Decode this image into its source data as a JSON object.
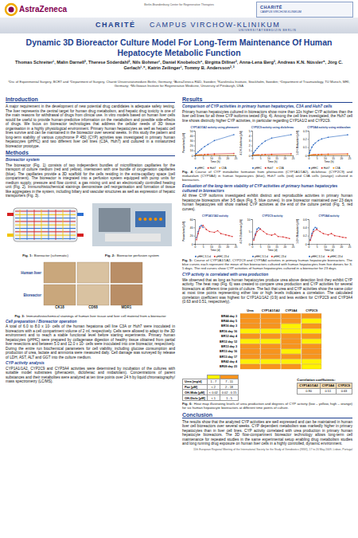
{
  "header": {
    "left_logo": "AstraZeneca",
    "center_logo": "Berlin-Brandenburg Center for Regenerative Therapies",
    "right_logo_1": "CHARITÉ",
    "right_logo_2": "CAMPUS VIRCHOW-KLINIKUM",
    "band_1": "CHARITÉ",
    "band_2": "CAMPUS VIRCHOW-KLINIKUM",
    "band_3": "UNIVERSITÄTSMEDIZIN BERLIN",
    "title": "Dynamic 3D Bioreactor Culture Model For Long-Term Maintenance Of Human Hepatocyte Metabolic Function",
    "authors": "Thomas Schreiter¹, Malin Darnell³, Therese Söderdahl², Nils Bohmer¹, Daniel Knobeloch⁴, Birgitta Dillner², Anna-Lena Berg², Andreas K.N. Nüssler⁵, Jörg C. Gerlach¹˒⁶, Katrin Zeilinger¹, Tommy B. Andersson²˒³",
    "affiliations": "¹Div. of Experimental Surgery, BCRT and ⁴Department of Surgery, Charité Universitätsmedizin Berlin, Germany; ²AstraZeneca R&D, Sweden; ³Karolinska Institute, Stockholm, Sweden; ⁵Department of Traumatology, TU Munich, MRI, Germany; ⁶McGowan Institute for Regenerative Medicine, University of Pittsburgh, USA"
  },
  "intro": {
    "heading": "Introduction",
    "text": "A major requirement in the development of new potential drug candidates is adequate safety testing. The liver represents the central target for human drug metabolism, and hepatic drug toxicity is one of the main reasons for withdrawal of drugs from clinical use. In vitro models based on human liver cells would be useful to provide human-predictive information on the metabolism and possible side-effects of drugs. We focus on bioreactor technologies that address the cellular needs of 3D tissue organisation in a highly physiological environment. Primary human hepatocytes as well as hepatic cell lines survive and can be maintained in the bioreactor over several weeks. In this study the pattern and long-term stability of various cytochrome P 450 (CYP) activities was investigated in primary human hepatocytes (pHHC) and two different liver cell lines (C3A, Huh7) and cultured in a miniaturized bioreactor prototype."
  },
  "methods": {
    "heading": "Methods",
    "bioreactor": {
      "subheading": "Bioreactor system",
      "text": "The bioreactor (Fig. 1) consists of two independent bundles of microfiltration capillaries for the transport of culture medium (red and yellow), interwoven with one bundle of oxygenation capillaries (blue). The capillaries provide a 3D scaffold for the cells residing in the extra-capillary space (cell compartment). The bioreactor is integrated into a perfusion system equipped with pump units for medium supply, pressure and flow control, a gas mixing unit and an electronically controlled heating unit (Fig. 2). Immunohistochemical stainings demonstrate cell reorganisation and formation of tissue like aggregates in the system, including biliary and vascular structures as well as expression of hepatic transporters (Fig. 3)."
    },
    "fig1": {
      "label": "Fig. 1:",
      "text": "Bioreactor (schematic)"
    },
    "fig2": {
      "label": "Fig. 2:",
      "text": "Bioreactor perfusion system"
    },
    "fig3": {
      "label": "Fig. 3:",
      "text": "Immunohistochemical stainings of human liver tissue and liver cell material from a bioreactor",
      "row_labels": [
        "Human liver",
        "Bioreactor"
      ],
      "col_labels": [
        "CK18",
        "CD68",
        "MDR1"
      ]
    },
    "cell_prep": {
      "subheading": "Cell preparation / Bioreactor operation",
      "text": "A total of 6.0 to 8.0 x 10⁷ cells of the human hepatoma cell line C3A or Huh7 were inoculated in bioreactors with a cell compartment volume of 2 ml, respectively. Cells were allowed to adapt to the 3D environment and to reach a stable functional level before starting experiments. Primary human hepatocytes (pHHC) were prepared by collagenase digestion of healthy tissue obtained from partial liver resections and between 5.0 and 12.0 x 10⁷ cells were inoculated into one bioreactor, respectively. During the entire run biochemical parameters for cell viability, including glucose consumption and production of urea, lactate and ammonia were measured daily. Cell damage was surveyed by release of LDH, AST, ALT and GGT into the culture medium."
    },
    "cyp_analysis": {
      "subheading": "CYP activity analysis",
      "text": "CYP1A1/1A2, CYP2C9 and CYP3A4 activities were determined by incubation of the cultures with suitable model substrates (phenacetin, diclofenac and midazolam). Concentrations of parent substances and their metabolites were analyzed at ten time points over 24 h by liquid chromatography/ mass spectrometry (LC/MS)."
    }
  },
  "results": {
    "heading": "Results",
    "comparison": {
      "subheading": "Comparison of CYP activities in primary human hepatocytes, C3A and Huh7 cells",
      "text": "Primary human hepatocytes cultured in bioreactors show more than 10x higher CYP activities than the liver cell lines for all three CYP isoforms tested (Fig. 4). Among the cell lines investigated, the Huh7 cell line shows distinctly higher CYP activities, in particular regarding CYP1A1/2 and CYP2C9."
    },
    "fig4": {
      "label": "Fig. 4:",
      "text": "Course of CYP metabolite formation from phenacetin (CYP1A1/1A2), diclofenac (CYP2C9) and midazolam (CYP3A4) in human hepatocytes (blue), Huh7 cells (red) and C3A cells (orange) cultured in bioreactors."
    },
    "evaluation": {
      "subheading": "Evaluation of the long-term stability of CYP activities of primary human hepatocytes cultured in bioreactors",
      "text": "All three CYP isoforms investigated exhibit distinct and reproducible activities in primary human hepatocyte bioreactors after 3-5 days (Fig. 5, blue curves). In one bioreactor maintained over 23 days human hepatocytes still show marked CYP activities at the end of the culture period (Fig. 5, red curves)."
    },
    "fig5": {
      "label": "Fig. 5:",
      "text": "Course of CYP1A1/1A2, CYP2C9 and CYP3A4 activities in primary human hepatocyte bioreactors. The blue curves each represent the mean of five bioreactors cultured with human hepatocytes from five donors for 3-5 days. The red curves show CYP activities of human hepatocytes cultured in a bioreactor for 23 days."
    },
    "correlation": {
      "subheading": "CYP activity is correlated with urea production",
      "text": "We observed that as long as human hepatocytes produce urea above detection limit they exhibit CYP activity. The heat map (Fig. 6) was created to compare urea production and CYP activities for several bioreactors at different time points of culture. The fact that urea and CYP activities show the same color at most time points representing either low or high levels indicates a correlation. The calculated correlation coefficient was highest for CYP1A1/1A2 (0.9) and less evident for CYP2C9 and CYP3A4 (0.63 and 0.51, respectively)."
    },
    "thresholds": {
      "rows": [
        [
          "Urea [mg/d]",
          "1 - 7",
          "7 - 11"
        ],
        [
          "Pae [µM]",
          "< 2",
          "2 - 18"
        ],
        [
          "OH-Mida [µM]",
          "< 0.02",
          "0.02 - 0.15"
        ],
        [
          "OH-Diclo [µM]",
          "< 1",
          "1 - 5"
        ]
      ]
    },
    "correlation_table": {
      "title": "Correlation coefficients:",
      "columns": [
        "CYP1A1/1A2",
        "CYP3A4",
        "CYP2C9"
      ],
      "values": [
        "0.90",
        "0.51",
        "0.63"
      ]
    },
    "fig6": {
      "label": "Fig. 6:",
      "text": "Heat map illustrating levels of urea production and degrees of CYP activity (low – yellow, high – orange) for six human hepatocyte bioreactors at different time points of culture."
    }
  },
  "conclusion": {
    "heading": "Conclusion",
    "text": "The results show that the analyzed CYP activities are well expressed and can be maintained in human liver cell bioreactors over several weeks. CYP dependent metabolism was markedly higher in primary hepatocytes than in liver cell lines. CYP activity correlated with urea production in primary human hepatocyte bioreactors. The 3D flow-compartment bioreactor technology allows long-term cell maintenance for repeated studies in the same experimental setup enabling drug metabolism studies and long running drug exposure on human liver cells in a highly controlled, dynamic environment."
  },
  "footer": "11th European Regional Meeting of the International Society for the Study of Xenobiotics (ISSX), 17 to 20 May 2009, Lisbon, Portugal",
  "chart_data": [
    {
      "type": "line",
      "title": "CYP1A1/1A2 activity using phenacetin",
      "x_label": "Time (h)",
      "y_label": "Paracetamol [µM]",
      "xlim": [
        0,
        25
      ],
      "xticks": [
        0,
        5,
        10,
        15,
        20,
        25
      ],
      "ylim": [
        0,
        50
      ],
      "yticks": [
        0,
        10,
        20,
        30,
        40,
        50
      ],
      "grid": false,
      "marker": "circle",
      "series": [
        {
          "name": "pHHC",
          "color": "#1f5fbf",
          "x": [
            0,
            0.5,
            1,
            2,
            3,
            4,
            6,
            8,
            12,
            24
          ],
          "values": [
            0,
            2,
            4,
            7,
            10,
            13,
            18,
            22,
            30,
            42
          ]
        },
        {
          "name": "Huh7",
          "color": "#d62020",
          "x": [
            0,
            0.5,
            1,
            2,
            3,
            4,
            6,
            8,
            12,
            24
          ],
          "values": [
            0,
            0.2,
            0.4,
            0.7,
            1,
            1.3,
            1.8,
            2.2,
            3,
            4
          ]
        },
        {
          "name": "C3A",
          "color": "#f39200",
          "x": [
            0,
            0.5,
            1,
            2,
            3,
            4,
            6,
            8,
            12,
            24
          ],
          "values": [
            0,
            0.05,
            0.1,
            0.15,
            0.2,
            0.25,
            0.3,
            0.35,
            0.4,
            0.5
          ]
        }
      ]
    },
    {
      "type": "line",
      "title": "CYP2C9 activity using diclofenac",
      "x_label": "Time (h)",
      "y_label": "4-OH-Diclofenac [µM]",
      "xlim": [
        0,
        25
      ],
      "xticks": [
        0,
        5,
        10,
        15,
        20,
        25
      ],
      "ylim": [
        0,
        5
      ],
      "yticks": [
        0,
        1,
        2,
        3,
        4,
        5
      ],
      "grid": false,
      "marker": "circle",
      "series": [
        {
          "name": "pHHC",
          "color": "#1f5fbf",
          "x": [
            0,
            0.5,
            1,
            2,
            3,
            4,
            6,
            8,
            12,
            24
          ],
          "values": [
            0,
            0.3,
            0.6,
            1,
            1.4,
            1.8,
            2.4,
            2.9,
            3.5,
            4.2
          ]
        },
        {
          "name": "Huh7",
          "color": "#d62020",
          "x": [
            0,
            0.5,
            1,
            2,
            3,
            4,
            6,
            8,
            12,
            24
          ],
          "values": [
            0,
            0.02,
            0.04,
            0.07,
            0.1,
            0.12,
            0.16,
            0.2,
            0.25,
            0.35
          ]
        },
        {
          "name": "C3A",
          "color": "#f39200",
          "x": [
            0,
            0.5,
            1,
            2,
            3,
            4,
            6,
            8,
            12,
            24
          ],
          "values": [
            0,
            0,
            0.01,
            0.01,
            0.02,
            0.02,
            0.03,
            0.03,
            0.04,
            0.05
          ]
        }
      ]
    },
    {
      "type": "line",
      "title": "CYP3A4 activity using midazolam",
      "x_label": "Time (h)",
      "y_label": "1-OH-Midazolam [µM]",
      "xlim": [
        0,
        25
      ],
      "xticks": [
        0,
        5,
        10,
        15,
        20,
        25
      ],
      "ylim": [
        0,
        0.3
      ],
      "yticks": [
        0,
        0.1,
        0.2,
        0.3
      ],
      "grid": false,
      "marker": "circle",
      "series": [
        {
          "name": "pHHC",
          "color": "#1f5fbf",
          "x": [
            0,
            0.5,
            1,
            2,
            3,
            4,
            6,
            8,
            12,
            24
          ],
          "values": [
            0,
            0.03,
            0.06,
            0.1,
            0.13,
            0.15,
            0.18,
            0.2,
            0.22,
            0.25
          ]
        },
        {
          "name": "Huh7",
          "color": "#d62020",
          "x": [
            0,
            0.5,
            1,
            2,
            3,
            4,
            6,
            8,
            12,
            24
          ],
          "values": [
            0,
            0.002,
            0.004,
            0.006,
            0.008,
            0.01,
            0.012,
            0.014,
            0.016,
            0.02
          ]
        },
        {
          "name": "C3A",
          "color": "#f39200",
          "x": [
            0,
            0.5,
            1,
            2,
            3,
            4,
            6,
            8,
            12,
            24
          ],
          "values": [
            0,
            0.001,
            0.002,
            0.003,
            0.004,
            0.005,
            0.006,
            0.007,
            0.008,
            0.01
          ]
        }
      ]
    },
    {
      "type": "line",
      "title": "CYP1A1/1A2 activity",
      "x_label": "Time (d)",
      "y_label": "Paracetamol [µM]",
      "xlim": [
        0,
        25
      ],
      "xticks": [
        0,
        5,
        10,
        15,
        20,
        25
      ],
      "ylim": [
        0,
        60
      ],
      "yticks": [
        0,
        20,
        40,
        60
      ],
      "grid": false,
      "marker": "circle",
      "series": [
        {
          "name": "pHHC 3-5 d",
          "color": "#1f5fbf",
          "x": [
            1,
            2,
            3,
            4,
            5
          ],
          "values": [
            15,
            30,
            42,
            45,
            40
          ]
        },
        {
          "name": "pHHC 23 d",
          "color": "#d62020",
          "x": [
            1,
            2,
            3,
            5,
            7,
            9,
            12,
            14,
            16,
            19,
            21,
            23
          ],
          "values": [
            10,
            25,
            38,
            45,
            35,
            30,
            28,
            32,
            25,
            22,
            20,
            18
          ]
        }
      ]
    },
    {
      "type": "line",
      "title": "CYP2C9 activity",
      "x_label": "Time (d)",
      "y_label": "4-OH-Diclofenac [µM]",
      "xlim": [
        0,
        25
      ],
      "xticks": [
        0,
        5,
        10,
        15,
        20,
        25
      ],
      "ylim": [
        0,
        10
      ],
      "yticks": [
        0,
        5,
        10
      ],
      "grid": false,
      "marker": "circle",
      "series": [
        {
          "name": "pHHC 3-5 d",
          "color": "#1f5fbf",
          "x": [
            1,
            2,
            3,
            4,
            5
          ],
          "values": [
            2,
            4,
            6,
            6.5,
            6
          ]
        },
        {
          "name": "pHHC 23 d",
          "color": "#d62020",
          "x": [
            1,
            2,
            3,
            5,
            7,
            9,
            12,
            14,
            16,
            19,
            21,
            23
          ],
          "values": [
            1.5,
            3.5,
            5,
            6,
            5,
            4,
            3.5,
            4,
            3,
            2.8,
            2.5,
            2.2
          ]
        }
      ]
    },
    {
      "type": "line",
      "title": "CYP3A4 activity",
      "x_label": "Time (d)",
      "y_label": "1-OH-Midazolam [µM]",
      "xlim": [
        0,
        25
      ],
      "xticks": [
        0,
        5,
        10,
        15,
        20,
        25
      ],
      "ylim": [
        0,
        0.6
      ],
      "yticks": [
        0,
        0.2,
        0.4,
        0.6
      ],
      "grid": false,
      "marker": "circle",
      "series": [
        {
          "name": "pHHC 3-5 d",
          "color": "#1f5fbf",
          "x": [
            1,
            2,
            3,
            4,
            5
          ],
          "values": [
            0.1,
            0.25,
            0.35,
            0.4,
            0.38
          ]
        },
        {
          "name": "pHHC 23 d",
          "color": "#d62020",
          "x": [
            1,
            2,
            3,
            5,
            7,
            9,
            12,
            14,
            16,
            19,
            21,
            23
          ],
          "values": [
            0.08,
            0.2,
            0.3,
            0.35,
            0.3,
            0.25,
            0.22,
            0.25,
            0.2,
            0.18,
            0.16,
            0.15
          ]
        }
      ]
    },
    {
      "type": "heatmap",
      "columns": [
        "Urea",
        "CYP1A1/1A2",
        "CYP3A4",
        "CYP2C9"
      ],
      "rows": [
        "BR44 day 3",
        "BR44 day 5",
        "BR16 day 3",
        "BR16 day 16",
        "BR12 day 4",
        "BR12 day 12",
        "BR13 day 3",
        "BR13 day 16",
        "BR13 day 17",
        "BR42 day 4",
        "BR09 day 23"
      ],
      "cells": [
        [
          1,
          1,
          1,
          1
        ],
        [
          1,
          1,
          1,
          0
        ],
        [
          1,
          1,
          0,
          1
        ],
        [
          0,
          0,
          0,
          0
        ],
        [
          1,
          1,
          1,
          1
        ],
        [
          0,
          0,
          1,
          0
        ],
        [
          1,
          1,
          1,
          1
        ],
        [
          1,
          1,
          0,
          1
        ],
        [
          1,
          1,
          1,
          1
        ],
        [
          0,
          0,
          0,
          0
        ],
        [
          1,
          1,
          1,
          0
        ]
      ],
      "colors": [
        "#fff200",
        "#f7941d"
      ]
    }
  ]
}
